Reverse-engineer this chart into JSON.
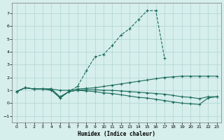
{
  "xlabel": "Humidex (Indice chaleur)",
  "x_all": [
    0,
    1,
    2,
    3,
    4,
    5,
    6,
    7,
    8,
    9,
    10,
    11,
    12,
    13,
    14,
    15,
    16,
    17,
    18,
    19,
    20,
    21,
    22,
    23
  ],
  "line_hump_x": [
    0,
    1,
    2,
    3,
    4,
    5,
    6,
    7,
    8,
    9,
    10,
    11,
    12,
    13,
    14,
    15,
    16,
    17
  ],
  "line_hump_y": [
    0.9,
    1.2,
    1.1,
    1.1,
    1.1,
    0.4,
    0.9,
    1.3,
    2.5,
    3.6,
    3.8,
    4.5,
    5.3,
    5.8,
    6.5,
    7.2,
    7.2,
    3.5
  ],
  "line_rising": [
    0.9,
    1.2,
    1.1,
    1.1,
    1.1,
    1.0,
    1.0,
    1.1,
    1.15,
    1.2,
    1.3,
    1.4,
    1.5,
    1.6,
    1.7,
    1.8,
    1.9,
    2.0,
    2.05,
    2.1,
    2.1,
    2.1,
    2.1,
    2.1
  ],
  "line_mid": [
    0.9,
    1.2,
    1.1,
    1.1,
    1.1,
    0.5,
    0.9,
    1.0,
    1.05,
    1.05,
    1.0,
    1.0,
    0.95,
    0.9,
    0.85,
    0.8,
    0.75,
    0.7,
    0.6,
    0.5,
    0.45,
    0.35,
    0.5,
    0.5
  ],
  "line_low": [
    0.9,
    1.2,
    1.1,
    1.1,
    1.0,
    0.4,
    0.9,
    1.0,
    0.95,
    0.9,
    0.8,
    0.75,
    0.65,
    0.55,
    0.45,
    0.4,
    0.3,
    0.2,
    0.1,
    0.0,
    -0.05,
    -0.1,
    0.4,
    0.5
  ],
  "color": "#1a6b5a",
  "bg_color": "#d6eeec",
  "grid_color": "#b0d5d3",
  "ylim": [
    -1.5,
    7.8
  ],
  "xlim": [
    -0.5,
    23.5
  ],
  "yticks": [
    -1,
    0,
    1,
    2,
    3,
    4,
    5,
    6,
    7
  ],
  "xticks": [
    0,
    1,
    2,
    3,
    4,
    5,
    6,
    7,
    8,
    9,
    10,
    11,
    12,
    13,
    14,
    15,
    16,
    17,
    18,
    19,
    20,
    21,
    22,
    23
  ]
}
